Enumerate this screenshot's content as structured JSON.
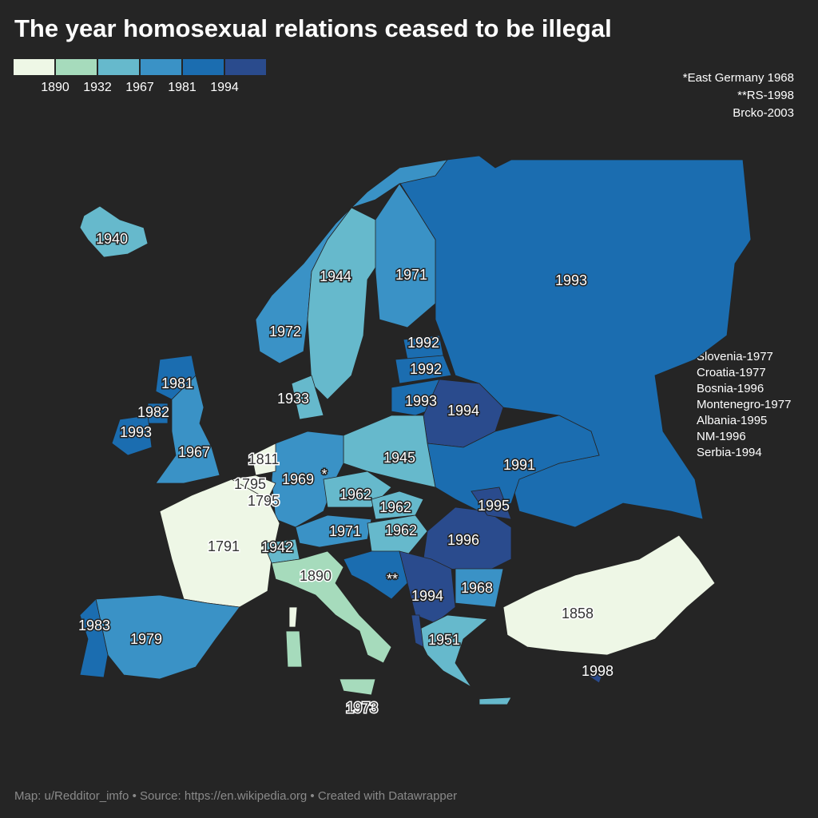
{
  "title": "The year homosexual relations ceased to be illegal",
  "legend": {
    "colors": [
      "#eef7e6",
      "#a6dbbc",
      "#66b9cc",
      "#3a92c6",
      "#1b6db0",
      "#2a4b8d"
    ],
    "ticks": [
      1890,
      1932,
      1967,
      1981,
      1994
    ]
  },
  "notes": [
    "*East Germany 1968",
    "**RS-1998",
    "Brcko-2003"
  ],
  "side_notes": [
    "Slovenia-1977",
    "Croatia-1977",
    "Bosnia-1996",
    "Montenegro-1977",
    "Albania-1995",
    "NM-1996",
    "Serbia-1994"
  ],
  "regions": [
    {
      "label": 1940
    },
    {
      "label": 1944
    },
    {
      "label": 1971
    },
    {
      "label": 1993
    },
    {
      "label": 1972
    },
    {
      "label": 1992
    },
    {
      "label": 1992
    },
    {
      "label": 1981
    },
    {
      "label": 1933
    },
    {
      "label": 1993
    },
    {
      "label": 1994
    },
    {
      "label": 1982
    },
    {
      "label": 1993
    },
    {
      "label": 1967
    },
    {
      "label": 1811
    },
    {
      "label": 1945
    },
    {
      "label": 1969
    },
    {
      "label": "*"
    },
    {
      "label": 1991
    },
    {
      "label": 1795
    },
    {
      "label": 1795
    },
    {
      "label": 1962
    },
    {
      "label": 1962
    },
    {
      "label": 1995
    },
    {
      "label": 1962
    },
    {
      "label": 1791
    },
    {
      "label": 1971
    },
    {
      "label": 1996
    },
    {
      "label": 1942
    },
    {
      "label": 1890
    },
    {
      "label": "**"
    },
    {
      "label": 1968
    },
    {
      "label": 1994
    },
    {
      "label": 1858
    },
    {
      "label": 1983
    },
    {
      "label": 1979
    },
    {
      "label": 1951
    },
    {
      "label": 1998
    },
    {
      "label": 1973
    }
  ],
  "footer": "Map: u/Redditor_imfo • Source: https://en.wikipedia.org • Created with Datawrapper"
}
